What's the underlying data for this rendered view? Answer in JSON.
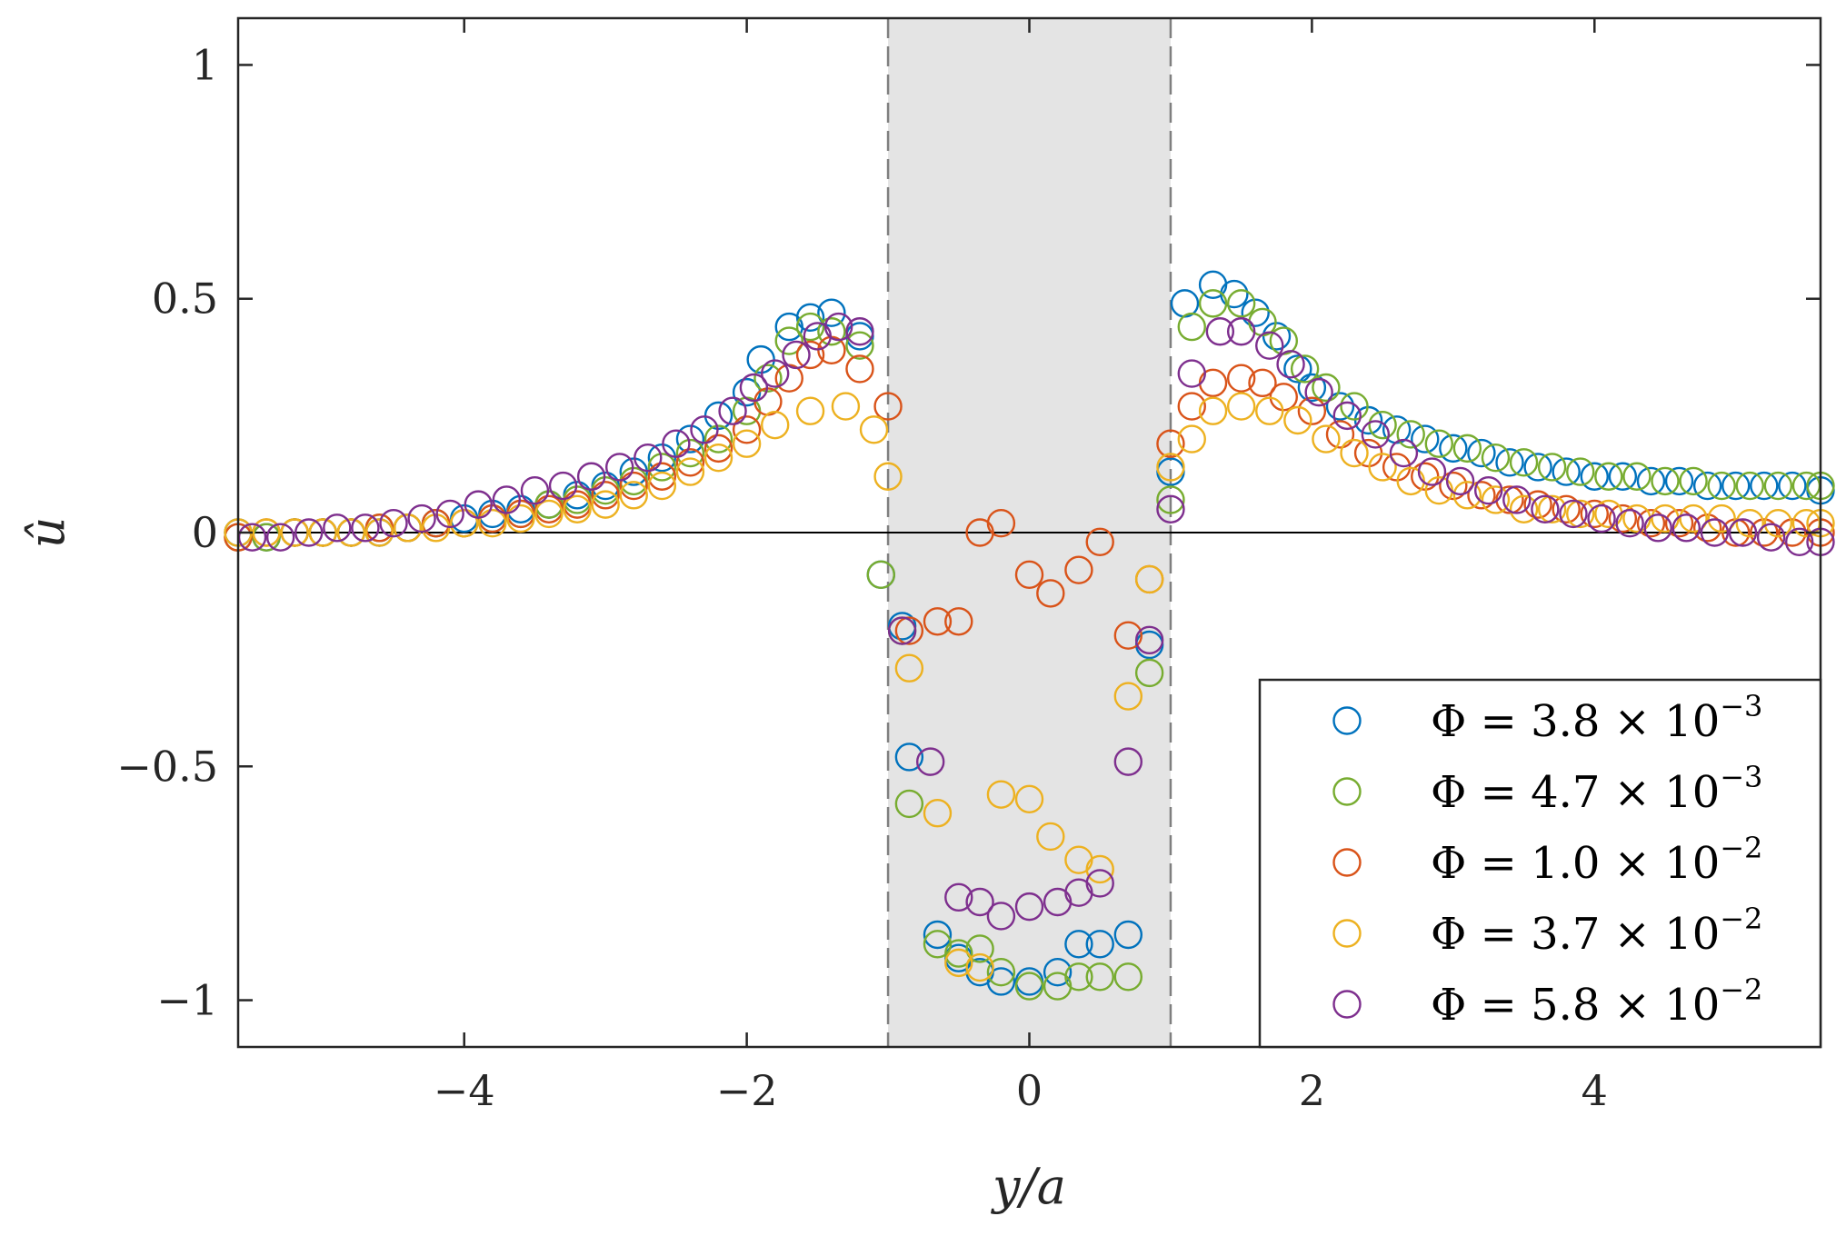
{
  "chart_data": {
    "type": "scatter",
    "xlabel": "y/a",
    "ylabel": "û",
    "xlim": [
      -5.6,
      5.6
    ],
    "ylim": [
      -1.1,
      1.1
    ],
    "xticks": [
      -4,
      -2,
      0,
      2,
      4
    ],
    "xtick_labels": [
      "−4",
      "−2",
      "0",
      "2",
      "4"
    ],
    "yticks": [
      1,
      0.5,
      0,
      -0.5,
      -1
    ],
    "ytick_labels": [
      "1",
      "0.5",
      "0",
      "−0.5",
      "−1"
    ],
    "shaded_region": [
      -1,
      1
    ],
    "zero_line": 0,
    "legend_position": "bottom-right",
    "series": [
      {
        "name": "Φ = 3.8 × 10",
        "exponent": "−3",
        "color": "#0072BD",
        "x": [
          -5.6,
          -5.4,
          -5.2,
          -5.0,
          -4.8,
          -4.6,
          -4.4,
          -4.2,
          -4.0,
          -3.8,
          -3.6,
          -3.4,
          -3.2,
          -3.0,
          -2.8,
          -2.6,
          -2.4,
          -2.2,
          -2.0,
          -1.9,
          -1.7,
          -1.55,
          -1.4,
          -1.2,
          -1.05,
          -0.9,
          -0.85,
          -0.65,
          -0.5,
          -0.35,
          -0.2,
          -0.0,
          0.2,
          0.35,
          0.5,
          0.7,
          0.85,
          1.0,
          1.1,
          1.3,
          1.45,
          1.6,
          1.75,
          1.9,
          2.0,
          2.2,
          2.4,
          2.6,
          2.8,
          3.0,
          3.2,
          3.4,
          3.6,
          3.8,
          4.0,
          4.2,
          4.4,
          4.6,
          4.8,
          5.0,
          5.2,
          5.4,
          5.6
        ],
        "values": [
          0.0,
          -0.01,
          0.0,
          0.0,
          0.0,
          0.0,
          0.01,
          0.02,
          0.03,
          0.04,
          0.05,
          0.06,
          0.08,
          0.1,
          0.13,
          0.16,
          0.2,
          0.25,
          0.3,
          0.37,
          0.44,
          0.46,
          0.47,
          0.42,
          -0.09,
          -0.2,
          -0.48,
          -0.86,
          -0.91,
          -0.94,
          -0.96,
          -0.96,
          -0.94,
          -0.88,
          -0.88,
          -0.86,
          -0.24,
          0.13,
          0.49,
          0.53,
          0.51,
          0.47,
          0.42,
          0.35,
          0.31,
          0.27,
          0.24,
          0.22,
          0.2,
          0.18,
          0.17,
          0.15,
          0.14,
          0.13,
          0.12,
          0.12,
          0.11,
          0.11,
          0.1,
          0.1,
          0.1,
          0.1,
          0.09
        ]
      },
      {
        "name": "Φ = 4.7 × 10",
        "exponent": "−3",
        "color": "#77AC30",
        "x": [
          -5.6,
          -5.4,
          -5.2,
          -5.0,
          -4.8,
          -4.6,
          -4.4,
          -4.2,
          -4.0,
          -3.8,
          -3.6,
          -3.4,
          -3.2,
          -3.0,
          -2.8,
          -2.6,
          -2.4,
          -2.2,
          -2.0,
          -1.85,
          -1.7,
          -1.55,
          -1.4,
          -1.2,
          -1.05,
          -0.9,
          -0.85,
          -0.65,
          -0.5,
          -0.35,
          -0.2,
          0.0,
          0.2,
          0.35,
          0.5,
          0.7,
          0.85,
          1.0,
          1.15,
          1.3,
          1.5,
          1.65,
          1.8,
          1.95,
          2.1,
          2.3,
          2.5,
          2.7,
          2.9,
          3.1,
          3.3,
          3.5,
          3.7,
          3.9,
          4.1,
          4.3,
          4.5,
          4.7,
          4.9,
          5.1,
          5.3,
          5.5,
          5.6
        ],
        "values": [
          -0.01,
          -0.01,
          0.0,
          0.0,
          0.0,
          0.01,
          0.01,
          0.02,
          0.02,
          0.03,
          0.04,
          0.06,
          0.07,
          0.09,
          0.11,
          0.14,
          0.17,
          0.2,
          0.26,
          0.33,
          0.41,
          0.44,
          0.43,
          0.4,
          -0.09,
          -0.21,
          -0.58,
          -0.88,
          -0.9,
          -0.89,
          -0.94,
          -0.97,
          -0.97,
          -0.95,
          -0.95,
          -0.95,
          -0.3,
          0.07,
          0.44,
          0.49,
          0.49,
          0.45,
          0.41,
          0.35,
          0.31,
          0.27,
          0.23,
          0.21,
          0.19,
          0.18,
          0.16,
          0.15,
          0.14,
          0.13,
          0.12,
          0.12,
          0.11,
          0.11,
          0.1,
          0.1,
          0.1,
          0.1,
          0.1
        ]
      },
      {
        "name": "Φ = 1.0 × 10",
        "exponent": "−2",
        "color": "#D95319",
        "x": [
          -5.6,
          -5.4,
          -5.2,
          -5.0,
          -4.8,
          -4.6,
          -4.4,
          -4.2,
          -4.0,
          -3.8,
          -3.6,
          -3.4,
          -3.2,
          -3.0,
          -2.8,
          -2.6,
          -2.4,
          -2.2,
          -2.0,
          -1.85,
          -1.7,
          -1.55,
          -1.4,
          -1.2,
          -1.0,
          -0.85,
          -0.65,
          -0.5,
          -0.35,
          -0.2,
          0.0,
          0.15,
          0.35,
          0.5,
          0.7,
          0.85,
          1.0,
          1.15,
          1.3,
          1.5,
          1.65,
          1.8,
          2.0,
          2.2,
          2.4,
          2.6,
          2.8,
          3.0,
          3.2,
          3.4,
          3.6,
          3.8,
          4.0,
          4.2,
          4.4,
          4.6,
          4.8,
          5.0,
          5.2,
          5.4,
          5.6
        ],
        "values": [
          -0.01,
          0.0,
          0.0,
          0.0,
          0.0,
          0.01,
          0.01,
          0.02,
          0.02,
          0.03,
          0.04,
          0.05,
          0.06,
          0.08,
          0.1,
          0.12,
          0.15,
          0.18,
          0.22,
          0.28,
          0.33,
          0.38,
          0.39,
          0.35,
          0.27,
          -0.21,
          -0.19,
          -0.19,
          0.0,
          0.02,
          -0.09,
          -0.13,
          -0.08,
          -0.02,
          -0.22,
          -0.1,
          0.19,
          0.27,
          0.32,
          0.33,
          0.32,
          0.29,
          0.26,
          0.21,
          0.17,
          0.14,
          0.12,
          0.1,
          0.08,
          0.07,
          0.06,
          0.05,
          0.04,
          0.03,
          0.02,
          0.02,
          0.01,
          0.0,
          0.0,
          0.0,
          0.0
        ]
      },
      {
        "name": "Φ = 3.7 × 10",
        "exponent": "−2",
        "color": "#EDB120",
        "x": [
          -5.6,
          -5.4,
          -5.2,
          -5.0,
          -4.8,
          -4.6,
          -4.4,
          -4.2,
          -4.0,
          -3.8,
          -3.6,
          -3.4,
          -3.2,
          -3.0,
          -2.8,
          -2.6,
          -2.4,
          -2.2,
          -2.0,
          -1.8,
          -1.55,
          -1.3,
          -1.1,
          -1.0,
          -0.85,
          -0.65,
          -0.5,
          -0.35,
          -0.2,
          0.0,
          0.15,
          0.35,
          0.5,
          0.7,
          0.85,
          1.0,
          1.15,
          1.3,
          1.5,
          1.7,
          1.9,
          2.1,
          2.3,
          2.5,
          2.7,
          2.9,
          3.1,
          3.3,
          3.5,
          3.7,
          3.9,
          4.1,
          4.3,
          4.5,
          4.7,
          4.9,
          5.1,
          5.3,
          5.5,
          5.6
        ],
        "values": [
          0.0,
          0.0,
          0.0,
          0.0,
          0.0,
          0.0,
          0.01,
          0.01,
          0.02,
          0.02,
          0.03,
          0.04,
          0.05,
          0.06,
          0.08,
          0.1,
          0.13,
          0.16,
          0.19,
          0.23,
          0.26,
          0.27,
          0.22,
          0.12,
          -0.29,
          -0.6,
          -0.92,
          -0.93,
          -0.56,
          -0.57,
          -0.65,
          -0.7,
          -0.72,
          -0.35,
          -0.1,
          0.14,
          0.2,
          0.26,
          0.27,
          0.26,
          0.24,
          0.2,
          0.17,
          0.14,
          0.11,
          0.09,
          0.08,
          0.07,
          0.05,
          0.05,
          0.04,
          0.04,
          0.03,
          0.03,
          0.03,
          0.03,
          0.02,
          0.02,
          0.02,
          0.02
        ]
      },
      {
        "name": "Φ = 5.8 × 10",
        "exponent": "−2",
        "color": "#7E2F8E",
        "x": [
          -5.5,
          -5.3,
          -5.1,
          -4.9,
          -4.7,
          -4.5,
          -4.3,
          -4.1,
          -3.9,
          -3.7,
          -3.5,
          -3.3,
          -3.1,
          -2.9,
          -2.7,
          -2.5,
          -2.3,
          -2.1,
          -1.95,
          -1.8,
          -1.65,
          -1.5,
          -1.35,
          -1.2,
          -0.9,
          -0.7,
          -0.5,
          -0.35,
          -0.2,
          0.0,
          0.2,
          0.35,
          0.5,
          0.7,
          0.85,
          1.0,
          1.15,
          1.35,
          1.5,
          1.7,
          1.85,
          2.05,
          2.25,
          2.45,
          2.65,
          2.85,
          3.05,
          3.25,
          3.45,
          3.65,
          3.85,
          4.05,
          4.25,
          4.45,
          4.65,
          4.85,
          5.05,
          5.25,
          5.45,
          5.6
        ],
        "values": [
          -0.01,
          -0.01,
          0.0,
          0.01,
          0.01,
          0.02,
          0.03,
          0.04,
          0.06,
          0.07,
          0.09,
          0.1,
          0.12,
          0.14,
          0.16,
          0.19,
          0.22,
          0.26,
          0.31,
          0.34,
          0.38,
          0.42,
          0.44,
          0.43,
          -0.21,
          -0.49,
          -0.78,
          -0.79,
          -0.82,
          -0.8,
          -0.79,
          -0.77,
          -0.75,
          -0.49,
          -0.23,
          0.05,
          0.34,
          0.43,
          0.43,
          0.4,
          0.36,
          0.3,
          0.25,
          0.21,
          0.17,
          0.13,
          0.11,
          0.09,
          0.07,
          0.05,
          0.04,
          0.03,
          0.02,
          0.01,
          0.01,
          0.0,
          0.0,
          -0.01,
          -0.02,
          -0.02
        ]
      }
    ]
  }
}
